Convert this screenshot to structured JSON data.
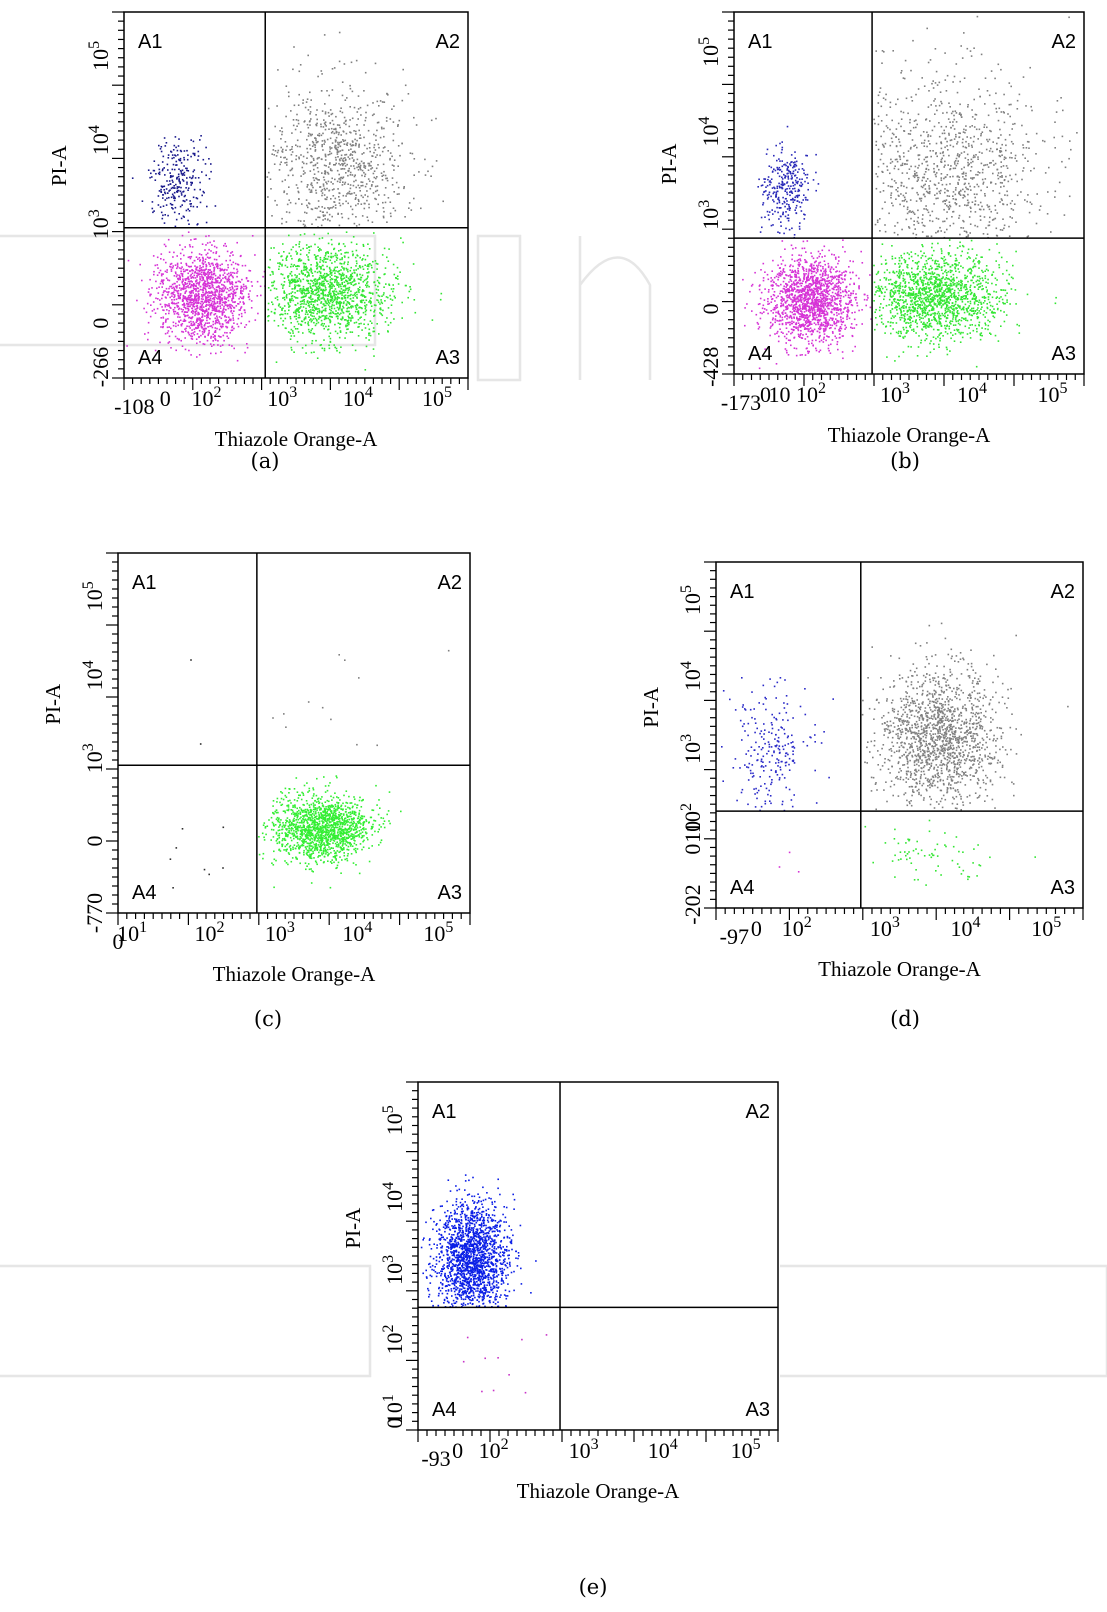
{
  "chart_data": [
    {
      "type": "scatter",
      "caption": "(a)",
      "xlabel": "Thiazole Orange-A",
      "ylabel": "PI-A",
      "x_ticks": [
        "-108",
        "0",
        "10^2",
        "10^3",
        "10^4",
        "10^5"
      ],
      "y_ticks": [
        "-266",
        "0",
        "10^3",
        "10^4",
        "10^5"
      ],
      "quadrants": [
        "A1",
        "A2",
        "A3",
        "A4"
      ],
      "gate": {
        "x": 350,
        "y": 350
      },
      "series": [
        {
          "quadrant": "A1",
          "color": "#1a1a8c",
          "count": 260,
          "spread": 0.22
        },
        {
          "quadrant": "A2",
          "color": "#808080",
          "count": 900,
          "spread": 0.4
        },
        {
          "quadrant": "A3",
          "color": "#33e633",
          "count": 1400,
          "spread": 0.35
        },
        {
          "quadrant": "A4",
          "color": "#d633d6",
          "count": 1400,
          "spread": 0.35
        }
      ]
    },
    {
      "type": "scatter",
      "caption": "(b)",
      "xlabel": "Thiazole Orange-A",
      "ylabel": "PI-A",
      "x_ticks": [
        "-173",
        "0",
        "10",
        "10^2",
        "10^3",
        "10^4",
        "10^5"
      ],
      "y_ticks": [
        "-428",
        "0",
        "10^3",
        "10^4",
        "10^5"
      ],
      "quadrants": [
        "A1",
        "A2",
        "A3",
        "A4"
      ],
      "gate": {
        "x": 300,
        "y": 250
      },
      "series": [
        {
          "quadrant": "A1",
          "color": "#2a2ab8",
          "count": 300,
          "spread": 0.2
        },
        {
          "quadrant": "A2",
          "color": "#808080",
          "count": 1100,
          "spread": 0.5
        },
        {
          "quadrant": "A3",
          "color": "#33e633",
          "count": 1500,
          "spread": 0.35
        },
        {
          "quadrant": "A4",
          "color": "#d633d6",
          "count": 1500,
          "spread": 0.35
        }
      ]
    },
    {
      "type": "scatter",
      "caption": "(c)",
      "xlabel": "Thiazole Orange-A",
      "ylabel": "PI-A",
      "x_ticks": [
        "0",
        "10^1",
        "10^2",
        "10^3",
        "10^4",
        "10^5"
      ],
      "y_ticks": [
        "-770",
        "0",
        "10^3",
        "10^4",
        "10^5"
      ],
      "quadrants": [
        "A1",
        "A2",
        "A3",
        "A4"
      ],
      "gate": {
        "x": 300,
        "y": 350
      },
      "series": [
        {
          "quadrant": "A1",
          "color": "#303030",
          "count": 4,
          "spread": 0.5
        },
        {
          "quadrant": "A2",
          "color": "#808080",
          "count": 12,
          "spread": 0.4
        },
        {
          "quadrant": "A3",
          "color": "#33ee33",
          "count": 1500,
          "spread": 0.25
        },
        {
          "quadrant": "A4",
          "color": "#303030",
          "count": 8,
          "spread": 0.5
        }
      ]
    },
    {
      "type": "scatter",
      "caption": "(d)",
      "xlabel": "Thiazole Orange-A",
      "ylabel": "PI-A",
      "x_ticks": [
        "-97",
        "0",
        "10^2",
        "10^3",
        "10^4",
        "10^5"
      ],
      "y_ticks": [
        "-202",
        "0",
        "10",
        "10^2",
        "10^3",
        "10^4",
        "10^5"
      ],
      "quadrants": [
        "A1",
        "A2",
        "A3",
        "A4"
      ],
      "gate": {
        "x": 300,
        "y": 100
      },
      "series": [
        {
          "quadrant": "A1",
          "color": "#2a2ac8",
          "count": 250,
          "spread": 0.3
        },
        {
          "quadrant": "A2",
          "color": "#808080",
          "count": 1500,
          "spread": 0.3
        },
        {
          "quadrant": "A3",
          "color": "#33e633",
          "count": 70,
          "spread": 0.3
        },
        {
          "quadrant": "A4",
          "color": "#d633d6",
          "count": 3,
          "spread": 0.3
        }
      ]
    },
    {
      "type": "scatter",
      "caption": "(e)",
      "xlabel": "Thiazole Orange-A",
      "ylabel": "PI-A",
      "x_ticks": [
        "-93",
        "0",
        "10^2",
        "10^3",
        "10^4",
        "10^5"
      ],
      "y_ticks": [
        "0",
        "10^1",
        "10^2",
        "10^3",
        "10^4",
        "10^5"
      ],
      "quadrants": [
        "A1",
        "A2",
        "A3",
        "A4"
      ],
      "gate": {
        "x": 300,
        "y": 200
      },
      "series": [
        {
          "quadrant": "A1",
          "color": "#0a1ee6",
          "count": 1800,
          "spread": 0.28
        },
        {
          "quadrant": "A2",
          "color": "#808080",
          "count": 0,
          "spread": 0.3
        },
        {
          "quadrant": "A3",
          "color": "#808080",
          "count": 0,
          "spread": 0.3
        },
        {
          "quadrant": "A4",
          "color": "#c833c8",
          "count": 10,
          "spread": 0.4
        }
      ]
    }
  ]
}
